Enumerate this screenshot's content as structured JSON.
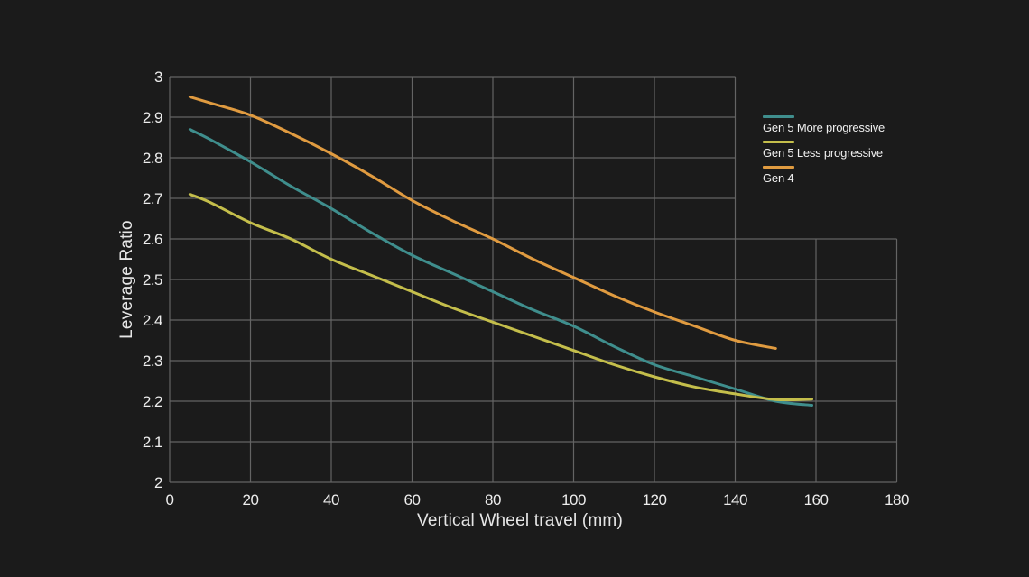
{
  "colors": {
    "background": "#1b1b1b",
    "grid": "#646464",
    "tick_text": "#ededed",
    "axis_title_text": "#e6e6e6"
  },
  "chart_data": {
    "type": "line",
    "title": "",
    "xlabel": "Vertical Wheel travel (mm)",
    "ylabel": "Leverage Ratio",
    "xlim": [
      0,
      180
    ],
    "ylim": [
      2,
      3
    ],
    "x_ticks": [
      0,
      20,
      40,
      60,
      80,
      100,
      120,
      140,
      160,
      180
    ],
    "y_ticks": [
      2,
      2.1,
      2.2,
      2.3,
      2.4,
      2.5,
      2.6,
      2.7,
      2.8,
      2.9,
      3
    ],
    "grid": true,
    "legend_position": "top-right",
    "series": [
      {
        "name": "Gen 5 More progressive",
        "color": "#3f8e8d",
        "points": [
          [
            5,
            2.87
          ],
          [
            10,
            2.845
          ],
          [
            20,
            2.79
          ],
          [
            30,
            2.73
          ],
          [
            40,
            2.675
          ],
          [
            50,
            2.615
          ],
          [
            60,
            2.56
          ],
          [
            70,
            2.515
          ],
          [
            80,
            2.47
          ],
          [
            90,
            2.425
          ],
          [
            100,
            2.385
          ],
          [
            110,
            2.335
          ],
          [
            120,
            2.29
          ],
          [
            130,
            2.26
          ],
          [
            140,
            2.23
          ],
          [
            150,
            2.2
          ],
          [
            159,
            2.19
          ]
        ]
      },
      {
        "name": "Gen 5 Less progressive",
        "color": "#c4be4b",
        "points": [
          [
            5,
            2.71
          ],
          [
            10,
            2.69
          ],
          [
            20,
            2.64
          ],
          [
            30,
            2.6
          ],
          [
            40,
            2.55
          ],
          [
            50,
            2.51
          ],
          [
            60,
            2.47
          ],
          [
            70,
            2.43
          ],
          [
            80,
            2.395
          ],
          [
            90,
            2.36
          ],
          [
            100,
            2.325
          ],
          [
            110,
            2.29
          ],
          [
            120,
            2.26
          ],
          [
            130,
            2.235
          ],
          [
            140,
            2.218
          ],
          [
            150,
            2.204
          ],
          [
            159,
            2.205
          ]
        ]
      },
      {
        "name": "Gen 4",
        "color": "#e09b40",
        "points": [
          [
            5,
            2.95
          ],
          [
            10,
            2.935
          ],
          [
            20,
            2.905
          ],
          [
            30,
            2.86
          ],
          [
            40,
            2.81
          ],
          [
            50,
            2.755
          ],
          [
            60,
            2.695
          ],
          [
            70,
            2.645
          ],
          [
            80,
            2.6
          ],
          [
            90,
            2.55
          ],
          [
            100,
            2.505
          ],
          [
            110,
            2.46
          ],
          [
            120,
            2.42
          ],
          [
            130,
            2.385
          ],
          [
            140,
            2.35
          ],
          [
            150,
            2.33
          ]
        ]
      }
    ]
  }
}
